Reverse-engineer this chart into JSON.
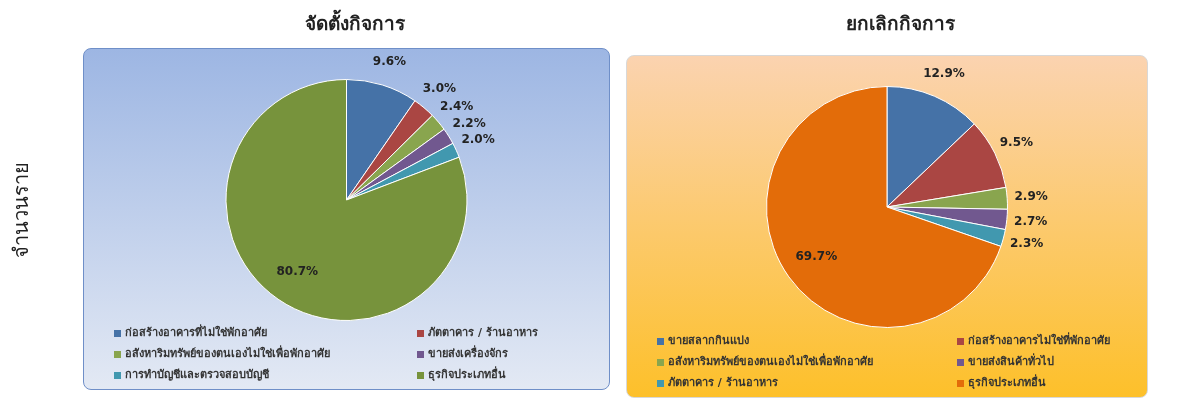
{
  "chart_data": [
    {
      "type": "pie",
      "title": "จัดตั้งกิจการ",
      "ylabel": "จำนวนราย",
      "legend": "bottom",
      "categories": [
        "ก่อสร้างอาคารที่ไม่ใช่พักอาศัย",
        "ภัตตาคาร / ร้านอาหาร",
        "อสังหาริมทรัพย์ของตนเองไม่ใช่เพื่อพักอาศัย",
        "ขายส่งเครื่องจักร",
        "การทำบัญชีและตรวจสอบบัญชี",
        "ธุรกิจประเภทอื่น"
      ],
      "values": [
        9.6,
        3.0,
        2.4,
        2.2,
        2.0,
        80.7
      ],
      "value_labels": [
        "9.6%",
        "3.0%",
        "2.4%",
        "2.2%",
        "2.0%",
        "80.7%"
      ],
      "colors": [
        "#4572a7",
        "#aa4643",
        "#89a54e",
        "#71588f",
        "#4198af",
        "#77933c"
      ]
    },
    {
      "type": "pie",
      "title": "ยกเลิกกิจการ",
      "legend": "bottom",
      "categories": [
        "ขายสลากกินแบ่ง",
        "ก่อสร้างอาคารไม่ใช่ที่พักอาศัย",
        "อสังหาริมทรัพย์ของตนเองไม่ใช่เพื่อพักอาศัย",
        "ขายส่งสินค้าทั่วไป",
        "ภัตตาคาร / ร้านอาหาร",
        "ธุรกิจประเภทอื่น"
      ],
      "values": [
        12.9,
        9.5,
        2.9,
        2.7,
        2.3,
        69.7
      ],
      "value_labels": [
        "12.9%",
        "9.5%",
        "2.9%",
        "2.7%",
        "2.3%",
        "69.7%"
      ],
      "colors": [
        "#4572a7",
        "#aa4643",
        "#89a54e",
        "#71588f",
        "#4198af",
        "#e36c09"
      ]
    }
  ]
}
